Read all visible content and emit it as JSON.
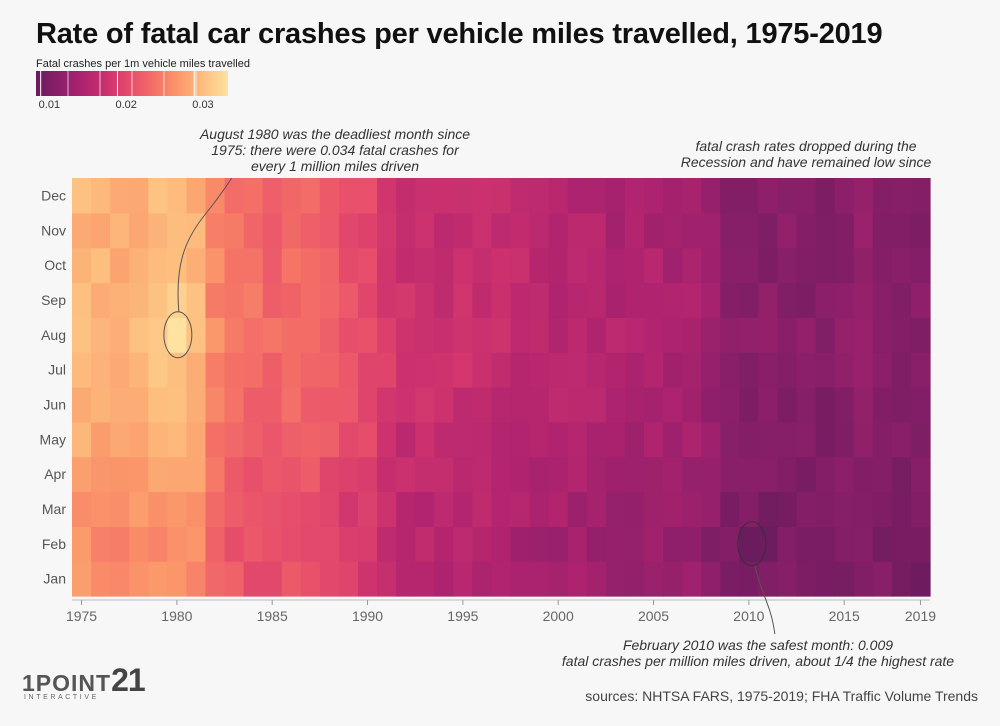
{
  "title": "Rate of fatal car crashes per vehicle miles travelled, 1975-2019",
  "legend": {
    "label": "Fatal crashes per 1m vehicle miles travelled",
    "ticks": [
      "0.01",
      "0.02",
      "0.03"
    ],
    "colors": [
      "#6b1c5e",
      "#8c1f6a",
      "#b0236f",
      "#cf336e",
      "#e84f6b",
      "#f57366",
      "#fb9a6b",
      "#fdbf7f",
      "#fee2a0"
    ]
  },
  "annotations": {
    "peak": "August 1980 was the deadliest month since 1975: there were 0.034 fatal crashes for every 1 million miles driven",
    "recession": "fatal crash rates dropped during the Recession and have remained low since",
    "lowest": "February 2010 was the safest month: 0.009 fatal crashes per million miles driven, about 1/4 the highest rate"
  },
  "annotation_lines": {
    "peak": [
      "August 1980 was the deadliest month since",
      "1975: there were 0.034 fatal crashes for",
      "every 1 million miles driven"
    ],
    "recession": [
      "fatal crash rates dropped during the",
      "Recession and have remained low since"
    ],
    "lowest": [
      "February 2010 was the safest month: 0.009",
      "fatal crashes per million miles driven, about 1/4 the highest rate"
    ]
  },
  "source": "sources: NHTSA FARS, 1975-2019; FHA Traffic Volume Trends",
  "logo": {
    "main": "1POINT",
    "number": "21",
    "sub": "INTERACTIVE"
  },
  "chart_data": {
    "type": "heatmap",
    "x_label": "",
    "y_label": "",
    "x_ticks": [
      1975,
      1980,
      1985,
      1990,
      1995,
      2000,
      2005,
      2010,
      2015,
      2019
    ],
    "y_categories": [
      "Jan",
      "Feb",
      "Mar",
      "Apr",
      "May",
      "Jun",
      "Jul",
      "Aug",
      "Sep",
      "Oct",
      "Nov",
      "Dec"
    ],
    "years": [
      1975,
      1976,
      1977,
      1978,
      1979,
      1980,
      1981,
      1982,
      1983,
      1984,
      1985,
      1986,
      1987,
      1988,
      1989,
      1990,
      1991,
      1992,
      1993,
      1994,
      1995,
      1996,
      1997,
      1998,
      1999,
      2000,
      2001,
      2002,
      2003,
      2004,
      2005,
      2006,
      2007,
      2008,
      2009,
      2010,
      2011,
      2012,
      2013,
      2014,
      2015,
      2016,
      2017,
      2018,
      2019
    ],
    "color_scale": {
      "min": 0.009,
      "max": 0.034
    },
    "annual_mean": [
      0.029,
      0.0285,
      0.0282,
      0.0285,
      0.029,
      0.0297,
      0.0286,
      0.0248,
      0.024,
      0.023,
      0.0225,
      0.0228,
      0.0222,
      0.0218,
      0.0208,
      0.02,
      0.0185,
      0.0172,
      0.0172,
      0.0168,
      0.017,
      0.0168,
      0.0164,
      0.016,
      0.0158,
      0.0153,
      0.015,
      0.015,
      0.0147,
      0.0145,
      0.0146,
      0.0142,
      0.0137,
      0.0128,
      0.0116,
      0.011,
      0.011,
      0.0113,
      0.011,
      0.0108,
      0.0113,
      0.0119,
      0.0117,
      0.0113,
      0.011
    ],
    "monthly_offset": [
      -0.0012,
      -0.0015,
      -0.001,
      -0.0004,
      0.0002,
      0.0006,
      0.0012,
      0.0014,
      0.0012,
      0.001,
      0.0006,
      0.0008
    ],
    "highlights": [
      {
        "year": 1980,
        "month": "Aug",
        "value": 0.034
      },
      {
        "year": 2010,
        "month": "Feb",
        "value": 0.009
      }
    ]
  }
}
